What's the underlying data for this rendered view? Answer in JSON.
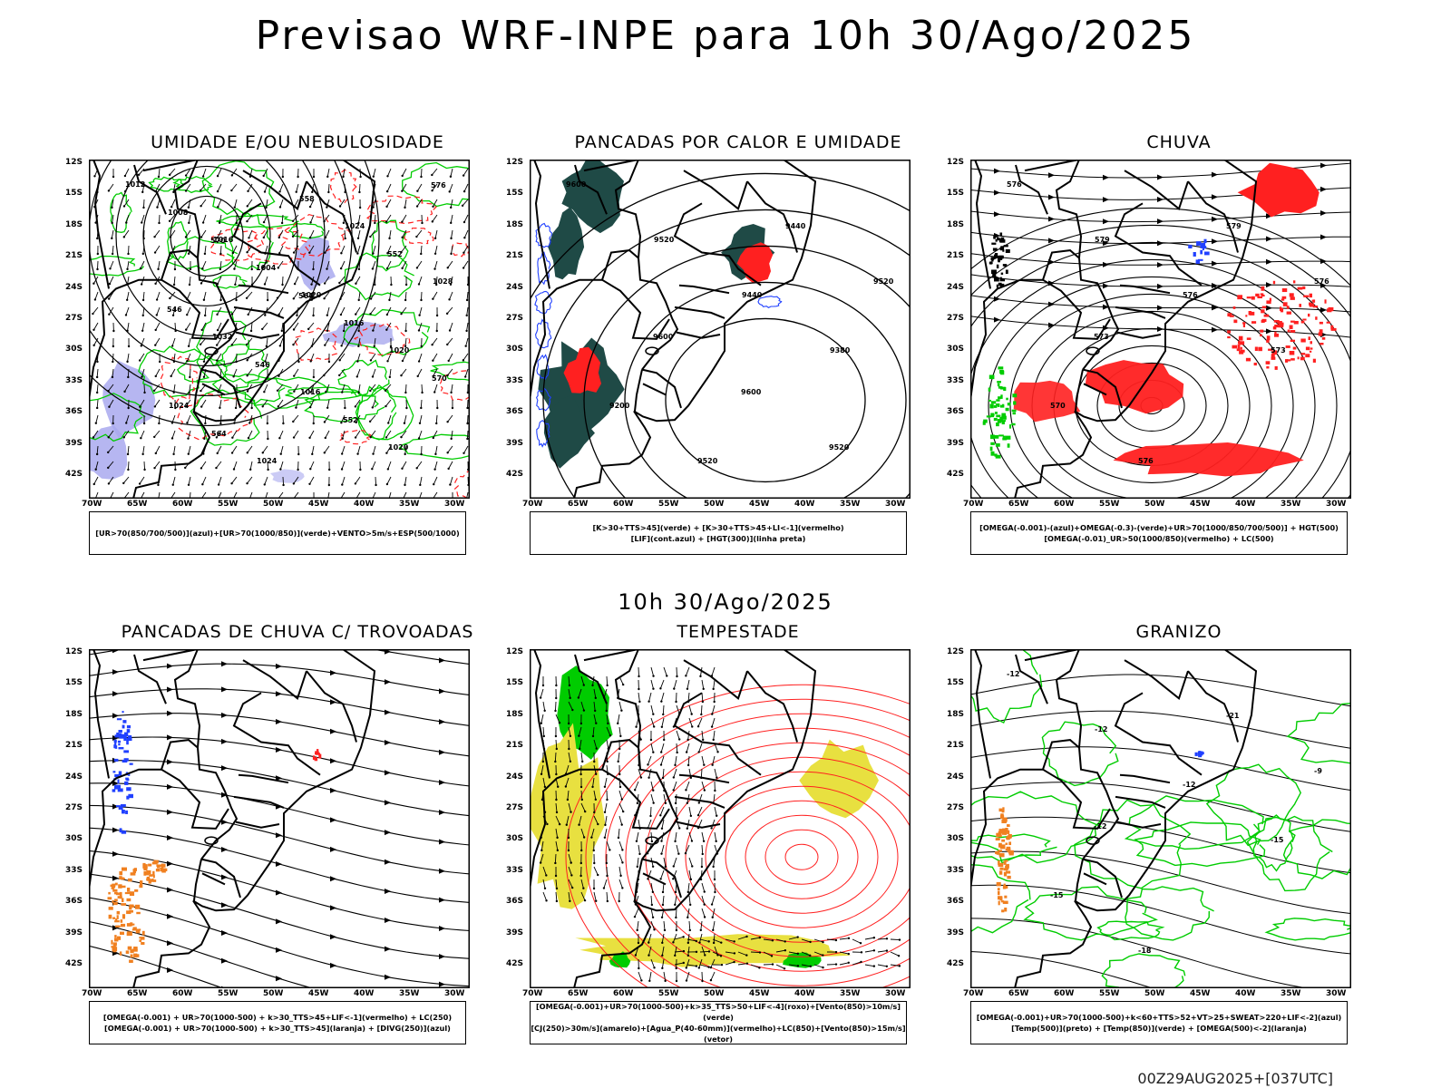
{
  "header": {
    "title": "Previsao WRF-INPE  para 10h 30/Ago/2025"
  },
  "mid_title": "10h 30/Ago/2025",
  "footer": "00Z29AUG2025+[037UTC]",
  "axes": {
    "lat_labels": [
      "12S",
      "15S",
      "18S",
      "21S",
      "24S",
      "27S",
      "30S",
      "33S",
      "36S",
      "39S",
      "42S"
    ],
    "lon_labels": [
      "70W",
      "65W",
      "60W",
      "55W",
      "50W",
      "45W",
      "40W",
      "35W",
      "30W"
    ]
  },
  "colors": {
    "green": "#00cc00",
    "red": "#ff2020",
    "blue": "#2040ff",
    "orange": "#f08020",
    "yellow": "#e8e040",
    "lavender": "#a9a9ee",
    "dark": "#1f4a46",
    "black": "#000000"
  },
  "panels": [
    {
      "id": "umidade",
      "title": "UMIDADE E/OU NEBULOSIDADE",
      "legend": [
        "[UR>70(850/700/500)](azul)+[UR>70(1000/850)](verde)+VENTO>5m/s+ESP(500/1000)"
      ],
      "contour_labels": [
        "1012",
        "1016",
        "1020",
        "1020",
        "1024",
        "1024",
        "1024",
        "1028",
        "1032",
        "1016",
        "1020",
        "1008",
        "1004",
        "1016",
        "570",
        "564",
        "558",
        "552",
        "546",
        "546",
        "552",
        "576",
        "570",
        "564"
      ]
    },
    {
      "id": "pancadas_calor",
      "title": "PANCADAS POR CALOR E UMIDADE",
      "legend": [
        "[K>30+TTS>45](verde) + [K>30+TTS>45+LI<-1](vermelho)",
        "[LIF](cont.azul) + [HGT(300)](linha preta)"
      ],
      "contour_labels": [
        "9600",
        "9520",
        "9440",
        "9380",
        "9200",
        "9520",
        "9440",
        "9520",
        "9600",
        "9600",
        "9520"
      ]
    },
    {
      "id": "chuva",
      "title": "CHUVA",
      "legend": [
        "[OMEGA(-0.001)-(azul)+OMEGA(-0.3)-(verde)+UR>70(1000/850/700/500)] + HGT(500)",
        "[OMEGA(-0.01)_UR>50(1000/850)(vermelho) + LC(500)"
      ],
      "contour_labels": [
        "576",
        "579",
        "576",
        "573",
        "570",
        "576",
        "579",
        "576",
        "573"
      ]
    },
    {
      "id": "pancadas_trovoadas",
      "title": "PANCADAS DE CHUVA C/ TROVOADAS",
      "legend": [
        "[OMEGA(-0.001) + UR>70(1000-500) + k>30_TTS>45+LIF<-1](vermelho) + LC(250)",
        "[OMEGA(-0.001) + UR>70(1000-500) + k>30_TTS>45](laranja) + [DIVG(250)](azul)"
      ],
      "contour_labels": []
    },
    {
      "id": "tempestade",
      "title": "TEMPESTADE",
      "legend": [
        "[OMEGA(-0.001)+UR>70(1000-500)+k>35_TTS>50+LIF<-4](roxo)+[Vento(850)>10m/s](verde)",
        "[CJ(250)>30m/s](amarelo)+[Agua_P(40-60mm)](vermelho)+LC(850)+[Vento(850)>15m/s](vetor)"
      ],
      "contour_labels": []
    },
    {
      "id": "granizo",
      "title": "GRANIZO",
      "legend": [
        "[OMEGA(-0.001)+UR>70(1000-500)+k<60+TTS>52+VT>25+SWEAT>220+LIF<-2](azul)",
        "[Temp(500)](preto) + [Temp(850)](verde) + [OMEGA(500)<-2](laranja)"
      ],
      "contour_labels": [
        "-12",
        "-12",
        "-12",
        "-15",
        "-15",
        "-18",
        "-21",
        "-9",
        "-12"
      ]
    }
  ]
}
